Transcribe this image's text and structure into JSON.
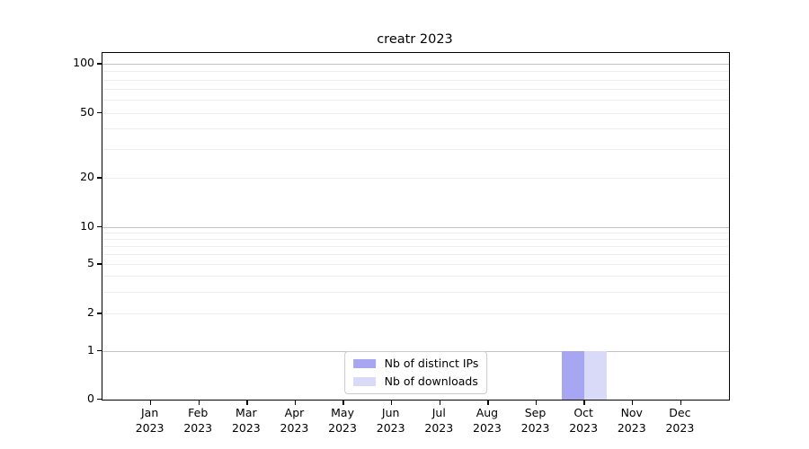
{
  "chart_data": {
    "type": "bar",
    "title": "creatr 2023",
    "categories": [
      "Jan 2023",
      "Feb 2023",
      "Mar 2023",
      "Apr 2023",
      "May 2023",
      "Jun 2023",
      "Jul 2023",
      "Aug 2023",
      "Sep 2023",
      "Oct 2023",
      "Nov 2023",
      "Dec 2023"
    ],
    "series": [
      {
        "name": "Nb of distinct IPs",
        "color": "#a6a6f2",
        "values": [
          0,
          0,
          0,
          0,
          0,
          0,
          0,
          0,
          0,
          1,
          0,
          0
        ]
      },
      {
        "name": "Nb of downloads",
        "color": "#d9d9f8",
        "values": [
          0,
          0,
          0,
          0,
          0,
          0,
          0,
          0,
          0,
          1,
          0,
          0
        ]
      }
    ],
    "yscale": "symlog",
    "y_ticks": [
      0,
      1,
      2,
      5,
      10,
      20,
      50,
      100
    ],
    "y_major_gridlines": [
      1,
      10,
      100
    ],
    "ylim": [
      0,
      107
    ],
    "xlabel": "",
    "ylabel": "",
    "grid": "both",
    "legend_position": "lower center"
  }
}
